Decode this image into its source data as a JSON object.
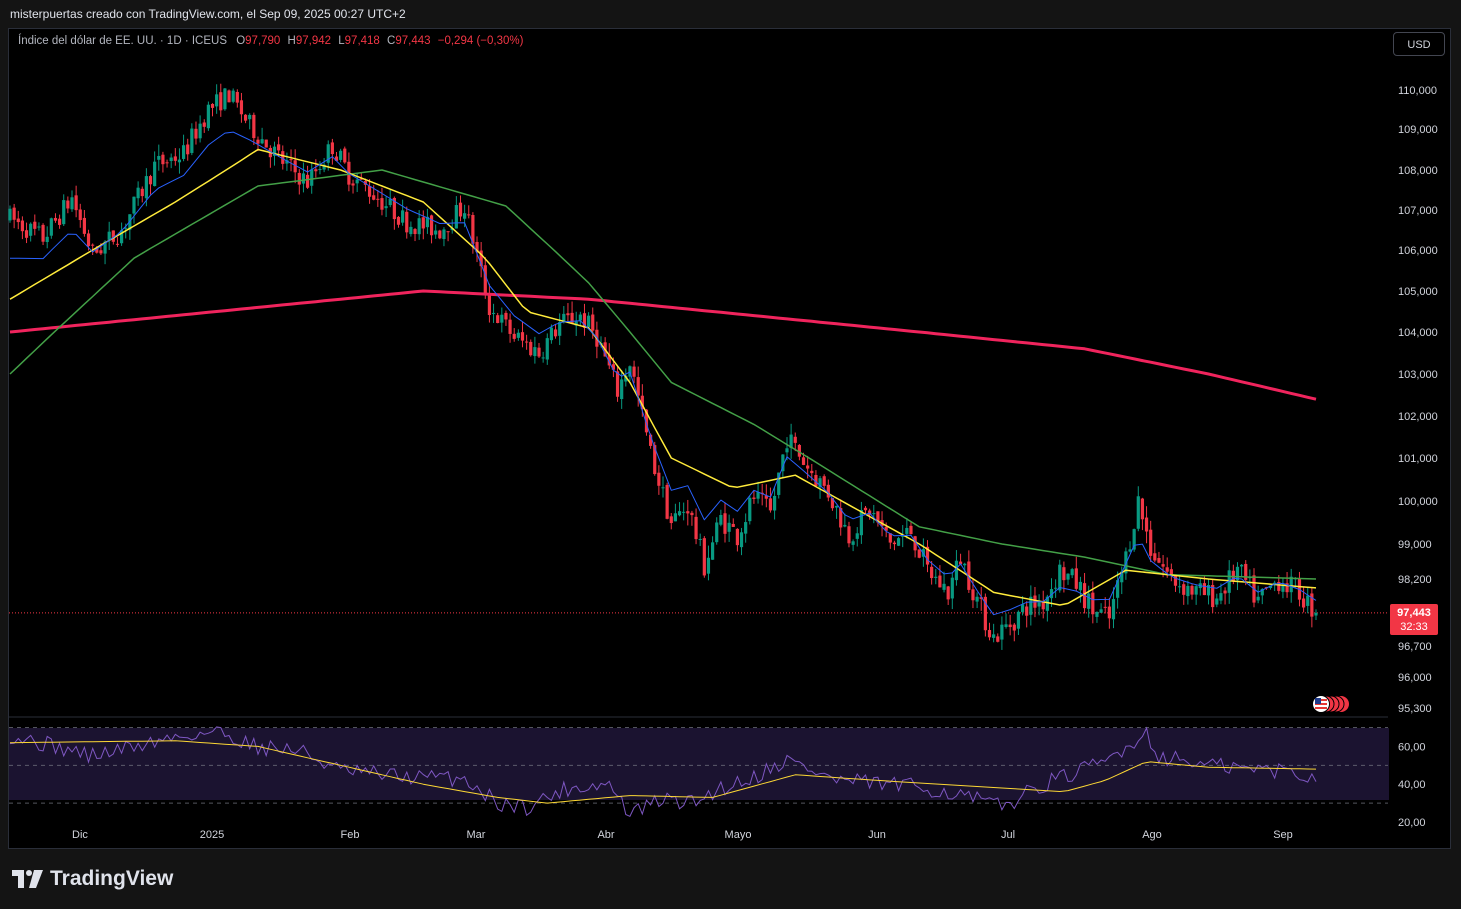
{
  "header": {
    "attribution": "misterpuertas creado con TradingView.com, el Sep 09, 2025 00:27 UTC+2"
  },
  "legend": {
    "symbol": "Índice del dólar de EE. UU. · 1D · ICEUS",
    "o_label": "O",
    "o_value": "97,790",
    "h_label": "H",
    "h_value": "97,942",
    "l_label": "L",
    "l_value": "97,418",
    "c_label": "C",
    "c_value": "97,443",
    "change": "−0,294 (−0,30%)"
  },
  "currency_button": "USD",
  "last_price": {
    "value": "97,443",
    "countdown": "32:33"
  },
  "footer": {
    "brand": "TradingView"
  },
  "colors": {
    "up": "#089981",
    "down": "#f23645",
    "ema_fast": "#2962ff",
    "ema_mid": "#ffeb3b",
    "ema_slow": "#43a047",
    "ema_200": "#f0245d",
    "rsi": "#7e57c2",
    "rsi_ma": "#fdd835"
  },
  "chart_data": [
    {
      "type": "candlestick",
      "title": "Índice del dólar de EE. UU. · 1D · ICEUS",
      "x_ticks": [
        "Dic",
        "2025",
        "Feb",
        "Mar",
        "Abr",
        "Mayo",
        "Jun",
        "Jul",
        "Ago",
        "Sep"
      ],
      "y_ticks": [
        "110,000",
        "109,000",
        "108,000",
        "107,000",
        "106,000",
        "105,000",
        "104,000",
        "103,000",
        "102,000",
        "101,000",
        "100,000",
        "99,000",
        "98,200",
        "96,700",
        "96,000",
        "95,300"
      ],
      "ylim": [
        95.1,
        110.7
      ],
      "last_price": 97.443,
      "price_path": [
        [
          0,
          106.8
        ],
        [
          8,
          106.3
        ],
        [
          15,
          107.3
        ],
        [
          20,
          105.9
        ],
        [
          27,
          106.5
        ],
        [
          35,
          108.1
        ],
        [
          42,
          108.4
        ],
        [
          48,
          109.5
        ],
        [
          53,
          109.9
        ],
        [
          58,
          109.1
        ],
        [
          66,
          108.2
        ],
        [
          72,
          107.7
        ],
        [
          78,
          108.6
        ],
        [
          82,
          107.9
        ],
        [
          88,
          107.4
        ],
        [
          96,
          106.7
        ],
        [
          104,
          106.5
        ],
        [
          110,
          107.1
        ],
        [
          116,
          104.6
        ],
        [
          122,
          103.9
        ],
        [
          128,
          103.5
        ],
        [
          133,
          104.2
        ],
        [
          138,
          104.4
        ],
        [
          142,
          103.9
        ],
        [
          147,
          102.6
        ],
        [
          150,
          103.3
        ],
        [
          155,
          101.1
        ],
        [
          160,
          99.5
        ],
        [
          164,
          99.9
        ],
        [
          168,
          98.5
        ],
        [
          172,
          99.6
        ],
        [
          176,
          99.2
        ],
        [
          180,
          100.1
        ],
        [
          184,
          99.7
        ],
        [
          188,
          101.5
        ],
        [
          193,
          100.8
        ],
        [
          198,
          100.2
        ],
        [
          203,
          99.2
        ],
        [
          208,
          99.8
        ],
        [
          213,
          99.0
        ],
        [
          218,
          99.3
        ],
        [
          222,
          98.4
        ],
        [
          227,
          97.9
        ],
        [
          230,
          98.7
        ],
        [
          235,
          97.5
        ],
        [
          238,
          96.9
        ],
        [
          242,
          97.2
        ],
        [
          246,
          97.6
        ],
        [
          250,
          97.7
        ],
        [
          254,
          98.4
        ],
        [
          258,
          98.1
        ],
        [
          262,
          97.5
        ],
        [
          266,
          97.3
        ],
        [
          270,
          98.7
        ],
        [
          273,
          100.0
        ],
        [
          276,
          98.9
        ],
        [
          281,
          98.2
        ],
        [
          287,
          97.9
        ],
        [
          292,
          97.8
        ],
        [
          297,
          98.4
        ],
        [
          302,
          97.7
        ],
        [
          307,
          98.2
        ],
        [
          312,
          97.9
        ],
        [
          316,
          97.44
        ]
      ],
      "emas": {
        "ema_200": [
          [
            0,
            104.0
          ],
          [
            60,
            104.6
          ],
          [
            100,
            105.0
          ],
          [
            140,
            104.8
          ],
          [
            180,
            104.4
          ],
          [
            220,
            104.0
          ],
          [
            260,
            103.6
          ],
          [
            290,
            103.0
          ],
          [
            316,
            102.4
          ]
        ],
        "ema_50": [
          [
            0,
            103.0
          ],
          [
            30,
            105.8
          ],
          [
            60,
            107.6
          ],
          [
            90,
            108.0
          ],
          [
            120,
            107.1
          ],
          [
            140,
            105.2
          ],
          [
            160,
            102.8
          ],
          [
            180,
            101.8
          ],
          [
            200,
            100.6
          ],
          [
            220,
            99.4
          ],
          [
            240,
            99.0
          ],
          [
            260,
            98.7
          ],
          [
            280,
            98.3
          ],
          [
            316,
            98.2
          ]
        ],
        "ema_20": [
          [
            0,
            104.8
          ],
          [
            20,
            106.0
          ],
          [
            40,
            107.2
          ],
          [
            60,
            108.5
          ],
          [
            80,
            108.0
          ],
          [
            100,
            107.2
          ],
          [
            115,
            105.8
          ],
          [
            125,
            104.5
          ],
          [
            140,
            104.1
          ],
          [
            150,
            102.8
          ],
          [
            160,
            101.0
          ],
          [
            175,
            100.3
          ],
          [
            190,
            100.6
          ],
          [
            205,
            99.8
          ],
          [
            220,
            99.0
          ],
          [
            238,
            97.9
          ],
          [
            255,
            97.6
          ],
          [
            270,
            98.4
          ],
          [
            290,
            98.2
          ],
          [
            316,
            98.0
          ]
        ]
      }
    },
    {
      "type": "line",
      "title": "RSI",
      "y_ticks": [
        "60,00",
        "40,00",
        "20,00"
      ],
      "ylim": [
        20,
        74
      ],
      "guides": [
        70,
        50,
        30
      ],
      "rsi_path": [
        [
          0,
          66
        ],
        [
          20,
          55
        ],
        [
          40,
          65
        ],
        [
          50,
          68
        ],
        [
          60,
          60
        ],
        [
          70,
          58
        ],
        [
          80,
          47
        ],
        [
          95,
          44
        ],
        [
          110,
          43
        ],
        [
          118,
          30
        ],
        [
          125,
          28
        ],
        [
          135,
          38
        ],
        [
          145,
          40
        ],
        [
          150,
          24
        ],
        [
          158,
          32
        ],
        [
          165,
          30
        ],
        [
          172,
          38
        ],
        [
          180,
          44
        ],
        [
          188,
          53
        ],
        [
          200,
          42
        ],
        [
          212,
          40
        ],
        [
          222,
          38
        ],
        [
          232,
          33
        ],
        [
          240,
          28
        ],
        [
          250,
          40
        ],
        [
          258,
          46
        ],
        [
          265,
          52
        ],
        [
          270,
          60
        ],
        [
          275,
          67
        ],
        [
          278,
          55
        ],
        [
          290,
          50
        ],
        [
          300,
          48
        ],
        [
          310,
          47
        ],
        [
          316,
          42
        ]
      ],
      "rsi_ma_path": [
        [
          0,
          62
        ],
        [
          40,
          63
        ],
        [
          60,
          60
        ],
        [
          80,
          50
        ],
        [
          100,
          40
        ],
        [
          118,
          33
        ],
        [
          130,
          30
        ],
        [
          150,
          34
        ],
        [
          170,
          33
        ],
        [
          190,
          45
        ],
        [
          210,
          42
        ],
        [
          240,
          38
        ],
        [
          255,
          36
        ],
        [
          265,
          42
        ],
        [
          275,
          52
        ],
        [
          290,
          49
        ],
        [
          316,
          48
        ]
      ]
    }
  ]
}
